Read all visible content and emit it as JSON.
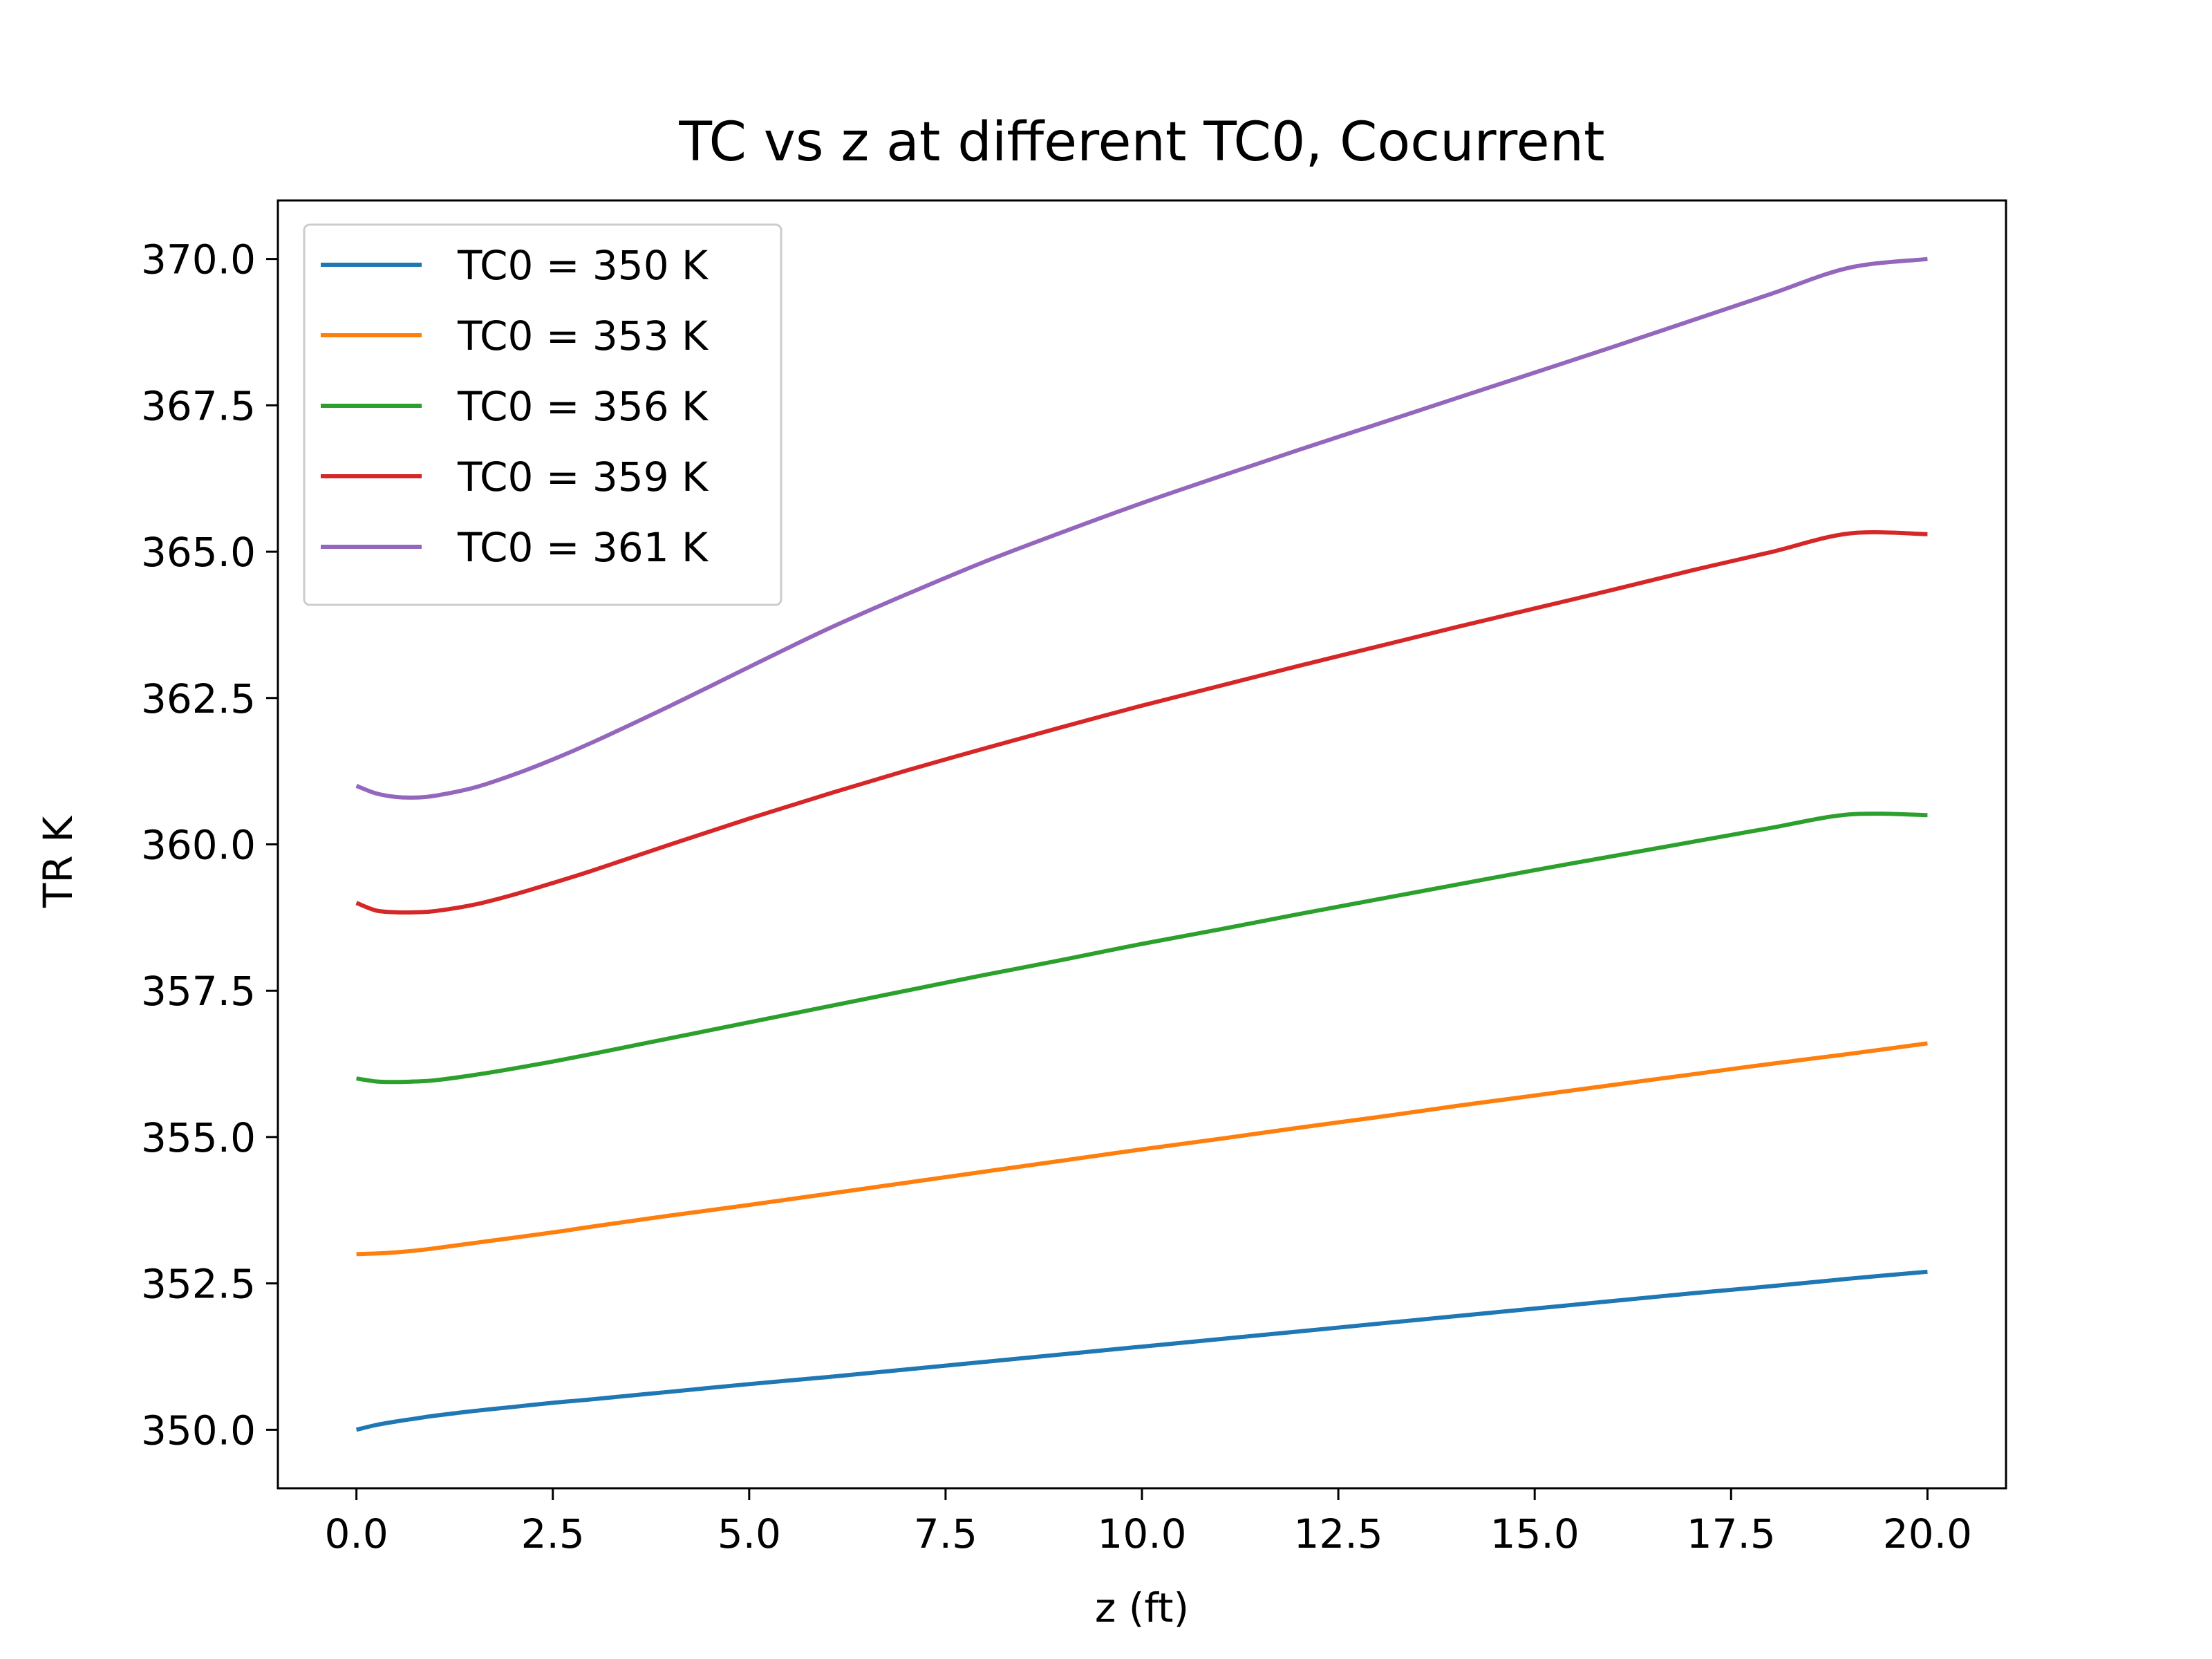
{
  "chart_data": {
    "type": "line",
    "title": "TC vs z at different TC0, Cocurrent",
    "xlabel": "z (ft)",
    "ylabel": "TR K",
    "xlim": [
      -1.0,
      21.0
    ],
    "ylim": [
      349.0,
      371.0
    ],
    "xticks": [
      0.0,
      2.5,
      5.0,
      7.5,
      10.0,
      12.5,
      15.0,
      17.5,
      20.0
    ],
    "xtick_labels": [
      "0.0",
      "2.5",
      "5.0",
      "7.5",
      "10.0",
      "12.5",
      "15.0",
      "17.5",
      "20.0"
    ],
    "yticks": [
      350.0,
      352.5,
      355.0,
      357.5,
      360.0,
      362.5,
      365.0,
      367.5,
      370.0
    ],
    "ytick_labels": [
      "350.0",
      "352.5",
      "355.0",
      "357.5",
      "360.0",
      "362.5",
      "365.0",
      "367.5",
      "370.0"
    ],
    "grid": false,
    "legend_position": "upper-left",
    "x": [
      0.0,
      0.25,
      0.5,
      0.75,
      1.0,
      1.5,
      2.0,
      2.5,
      3.0,
      4.0,
      5.0,
      6.0,
      7.0,
      8.0,
      9.0,
      10.0,
      11.0,
      12.0,
      13.0,
      14.0,
      15.0,
      16.0,
      17.0,
      18.0,
      19.0,
      20.0
    ],
    "series": [
      {
        "name": "TC0 = 350 K",
        "color": "#1f77b4",
        "values": [
          350.0,
          350.08,
          350.14,
          350.19,
          350.24,
          350.32,
          350.39,
          350.46,
          350.52,
          350.65,
          350.78,
          350.9,
          351.03,
          351.16,
          351.29,
          351.42,
          351.55,
          351.68,
          351.81,
          351.94,
          352.07,
          352.2,
          352.33,
          352.45,
          352.58,
          352.7
        ]
      },
      {
        "name": "TC0 = 353 K",
        "color": "#ff7f0e",
        "values": [
          353.0,
          353.01,
          353.03,
          353.06,
          353.1,
          353.19,
          353.28,
          353.37,
          353.47,
          353.66,
          353.84,
          354.03,
          354.22,
          354.41,
          354.6,
          354.79,
          354.97,
          355.16,
          355.34,
          355.53,
          355.71,
          355.89,
          356.07,
          356.25,
          356.42,
          356.6
        ]
      },
      {
        "name": "TC0 = 356 K",
        "color": "#2ca02c",
        "values": [
          356.0,
          355.95,
          355.94,
          355.95,
          355.97,
          356.06,
          356.17,
          356.29,
          356.42,
          356.69,
          356.96,
          357.23,
          357.5,
          357.77,
          358.03,
          358.3,
          358.55,
          358.81,
          359.06,
          359.31,
          359.56,
          359.8,
          360.04,
          360.28,
          360.51,
          360.5
        ]
      },
      {
        "name": "TC0 = 359 K",
        "color": "#d62728",
        "values": [
          359.0,
          358.87,
          358.84,
          358.84,
          358.86,
          358.97,
          359.14,
          359.34,
          359.55,
          360.0,
          360.44,
          360.86,
          361.26,
          361.64,
          362.01,
          362.37,
          362.71,
          363.05,
          363.38,
          363.71,
          364.03,
          364.35,
          364.68,
          364.99,
          365.31,
          365.3
        ]
      },
      {
        "name": "TC0 = 361 K",
        "color": "#9467bd",
        "values": [
          361.0,
          360.87,
          360.81,
          360.8,
          360.83,
          360.97,
          361.19,
          361.45,
          361.74,
          362.37,
          363.03,
          363.68,
          364.27,
          364.83,
          365.34,
          365.83,
          366.29,
          366.74,
          367.18,
          367.62,
          368.06,
          368.5,
          368.95,
          369.4,
          369.85,
          370.0
        ]
      }
    ]
  }
}
